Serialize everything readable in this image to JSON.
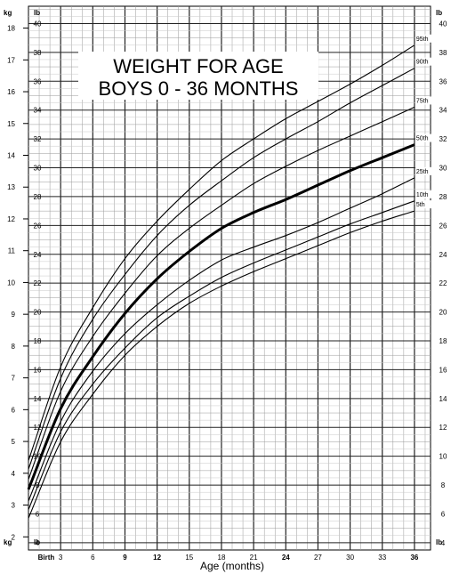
{
  "chart_data": {
    "type": "line",
    "title_lines": [
      "WEIGHT FOR AGE",
      "BOYS 0 - 36 MONTHS"
    ],
    "xlabel": "Age (months)",
    "unit_labels": {
      "kg": "kg",
      "lb": "lb"
    },
    "x_ticks": [
      {
        "value": 0,
        "label": "Birth",
        "bold": true
      },
      {
        "value": 3,
        "label": "3",
        "bold": false
      },
      {
        "value": 6,
        "label": "6",
        "bold": false
      },
      {
        "value": 9,
        "label": "9",
        "bold": true
      },
      {
        "value": 12,
        "label": "12",
        "bold": true
      },
      {
        "value": 15,
        "label": "15",
        "bold": false
      },
      {
        "value": 18,
        "label": "18",
        "bold": false
      },
      {
        "value": 21,
        "label": "21",
        "bold": false
      },
      {
        "value": 24,
        "label": "24",
        "bold": true
      },
      {
        "value": 27,
        "label": "27",
        "bold": false
      },
      {
        "value": 30,
        "label": "30",
        "bold": false
      },
      {
        "value": 33,
        "label": "33",
        "bold": false
      },
      {
        "value": 36,
        "label": "36",
        "bold": true
      }
    ],
    "xlim": [
      0,
      37.5
    ],
    "kg_ticks": [
      "2",
      "3",
      "4",
      "5",
      "6",
      "7",
      "8",
      "9",
      "10",
      "11",
      "12",
      "13",
      "14",
      "15",
      "16",
      "17",
      "18"
    ],
    "lb_ticks": [
      "4",
      "6",
      "8",
      "10",
      "12",
      "14",
      "16",
      "18",
      "20",
      "22",
      "24",
      "26",
      "28",
      "30",
      "32",
      "34",
      "36",
      "38",
      "40"
    ],
    "lb_range": [
      3.5,
      41.2
    ],
    "grid": true,
    "x": [
      0,
      3,
      6,
      9,
      12,
      15,
      18,
      21,
      24,
      27,
      30,
      33,
      36
    ],
    "series": [
      {
        "name": "95th",
        "bold": false,
        "y_lb": [
          9.7,
          16.2,
          20.3,
          23.7,
          26.3,
          28.5,
          30.5,
          32.0,
          33.4,
          34.6,
          35.8,
          37.1,
          38.5
        ]
      },
      {
        "name": "90th",
        "bold": false,
        "y_lb": [
          9.1,
          15.4,
          19.5,
          22.6,
          25.3,
          27.4,
          29.1,
          30.7,
          32.0,
          33.2,
          34.5,
          35.7,
          36.9
        ]
      },
      {
        "name": "75th",
        "bold": false,
        "y_lb": [
          8.4,
          14.5,
          18.3,
          21.3,
          23.9,
          25.8,
          27.4,
          28.9,
          30.1,
          31.2,
          32.2,
          33.2,
          34.2
        ]
      },
      {
        "name": "50th",
        "bold": true,
        "y_lb": [
          7.7,
          13.3,
          16.9,
          19.9,
          22.3,
          24.2,
          25.8,
          26.9,
          27.8,
          28.8,
          29.8,
          30.7,
          31.6
        ]
      },
      {
        "name": "25th",
        "bold": false,
        "y_lb": [
          6.9,
          12.4,
          15.9,
          18.5,
          20.5,
          22.2,
          23.6,
          24.5,
          25.3,
          26.2,
          27.2,
          28.2,
          29.3
        ]
      },
      {
        "name": "10th",
        "bold": false,
        "y_lb": [
          6.3,
          11.7,
          15.0,
          17.5,
          19.6,
          21.1,
          22.4,
          23.4,
          24.3,
          25.2,
          26.1,
          26.9,
          27.7
        ]
      },
      {
        "name": "5th",
        "bold": false,
        "y_lb": [
          5.7,
          11.0,
          14.3,
          17.0,
          19.0,
          20.6,
          21.8,
          22.8,
          23.7,
          24.6,
          25.5,
          26.3,
          27.0
        ]
      }
    ]
  }
}
